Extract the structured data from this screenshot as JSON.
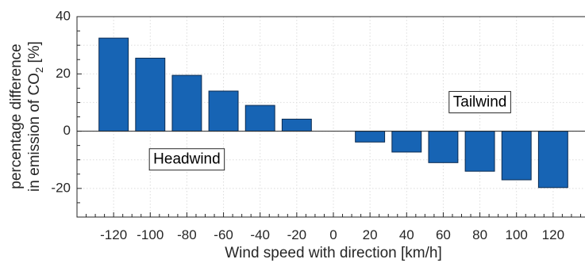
{
  "chart_data": {
    "type": "bar",
    "xlabel": "Wind speed with direction [km/h]",
    "ylabel_line1": "percentage difference",
    "ylabel_line2_prefix": "in emission of CO",
    "ylabel_line2_sub": "2",
    "ylabel_line2_suffix": " [%]",
    "categories": [
      "-120",
      "-100",
      "-80",
      "-60",
      "-40",
      "-20",
      "0",
      "20",
      "40",
      "60",
      "80",
      "100",
      "120"
    ],
    "x": [
      -120,
      -100,
      -80,
      -60,
      -40,
      -20,
      0,
      20,
      40,
      60,
      80,
      100,
      120
    ],
    "values": [
      32.5,
      25.5,
      19.5,
      14,
      9,
      4.2,
      0,
      -3.8,
      -7.3,
      -11,
      -14,
      -17,
      -19.7
    ],
    "xlim": [
      -140,
      140
    ],
    "ylim": [
      -30,
      40
    ],
    "yticks": [
      -20,
      0,
      20,
      40
    ],
    "bar_color": "#1764b4",
    "grid": true,
    "annotations": [
      {
        "text": "Headwind",
        "x": -80,
        "y": -10
      },
      {
        "text": "Tailwind",
        "x": 80,
        "y": 10
      }
    ]
  }
}
